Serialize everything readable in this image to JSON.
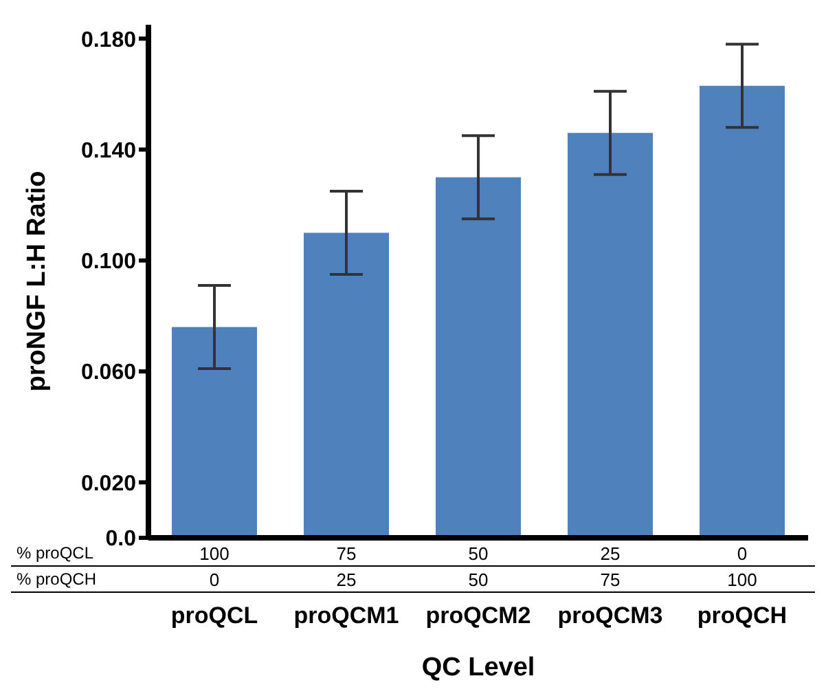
{
  "chart_data": {
    "type": "bar",
    "xlabel": "QC Level",
    "ylabel": "proNGF L:H Ratio",
    "categories": [
      "proQCL",
      "proQCM1",
      "proQCM2",
      "proQCM3",
      "proQCH"
    ],
    "values": [
      0.076,
      0.11,
      0.13,
      0.146,
      0.163
    ],
    "errors": [
      0.015,
      0.015,
      0.015,
      0.015,
      0.015
    ],
    "color": "#4f81bd",
    "ylim": [
      0,
      0.185
    ],
    "yticks": [
      {
        "value": 0,
        "label": "0.0"
      },
      {
        "value": 0.02,
        "label": "0.020"
      },
      {
        "value": 0.06,
        "label": "0.060"
      },
      {
        "value": 0.1,
        "label": "0.100"
      },
      {
        "value": 0.14,
        "label": "0.140"
      },
      {
        "value": 0.18,
        "label": "0.180"
      }
    ],
    "annotations": [
      "% proQCL",
      "100",
      "75",
      "50",
      "25",
      "0",
      "% proQCH",
      "0",
      "25",
      "50",
      "75",
      "100"
    ],
    "grid": false,
    "legend": false
  }
}
